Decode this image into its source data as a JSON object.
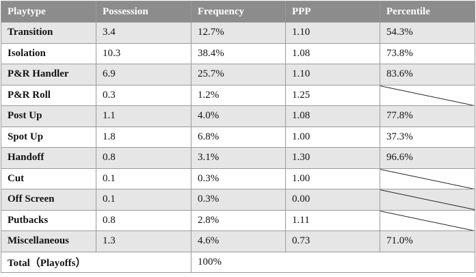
{
  "table": {
    "headers": [
      "Playtype",
      "Possession",
      "Frequency",
      "PPP",
      "Percentile"
    ],
    "rows": [
      {
        "playtype": "Transition",
        "possession": "3.4",
        "frequency": "12.7%",
        "ppp": "1.10",
        "percentile": "54.3%"
      },
      {
        "playtype": "Isolation",
        "possession": "10.3",
        "frequency": "38.4%",
        "ppp": "1.08",
        "percentile": "73.8%"
      },
      {
        "playtype": "P&R Handler",
        "possession": "6.9",
        "frequency": "25.7%",
        "ppp": "1.10",
        "percentile": "83.6%"
      },
      {
        "playtype": "P&R Roll",
        "possession": "0.3",
        "frequency": "1.2%",
        "ppp": "1.25",
        "percentile": null
      },
      {
        "playtype": "Post Up",
        "possession": "1.1",
        "frequency": "4.0%",
        "ppp": "1.08",
        "percentile": "77.8%"
      },
      {
        "playtype": "Spot Up",
        "possession": "1.8",
        "frequency": "6.8%",
        "ppp": "1.00",
        "percentile": "37.3%"
      },
      {
        "playtype": "Handoff",
        "possession": "0.8",
        "frequency": "3.1%",
        "ppp": "1.30",
        "percentile": "96.6%"
      },
      {
        "playtype": "Cut",
        "possession": "0.1",
        "frequency": "0.3%",
        "ppp": "1.00",
        "percentile": null
      },
      {
        "playtype": "Off Screen",
        "possession": "0.1",
        "frequency": "0.3%",
        "ppp": "0.00",
        "percentile": null
      },
      {
        "playtype": "Putbacks",
        "possession": "0.8",
        "frequency": "2.8%",
        "ppp": "1.11",
        "percentile": null
      },
      {
        "playtype": "Miscellaneous",
        "possession": "1.3",
        "frequency": "4.6%",
        "ppp": "0.73",
        "percentile": "71.0%"
      }
    ],
    "total": {
      "label": "Total（Playoffs）",
      "frequency": "100%"
    }
  },
  "colors": {
    "header_bg": "#8c8c8c",
    "header_text": "#ffffff",
    "row_alt_bg": "#e6e6e6",
    "row_plain_bg": "#ffffff",
    "border": "#9a9a9a"
  }
}
